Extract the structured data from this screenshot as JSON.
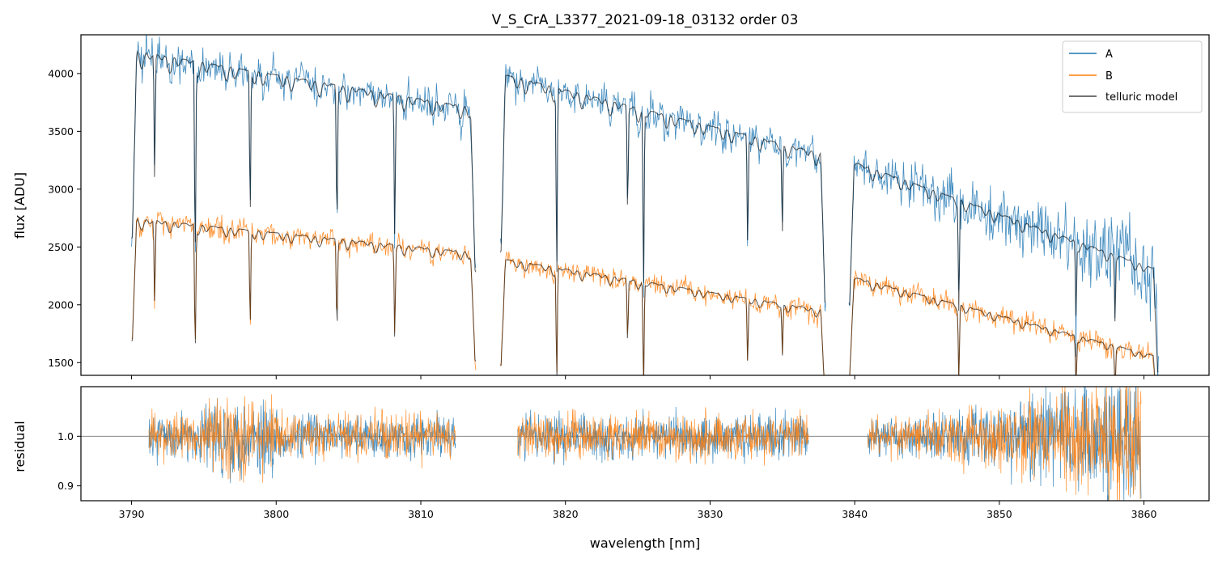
{
  "chart_data": [
    {
      "panel": "main",
      "type": "line",
      "title": "V_S_CrA_L3377_2021-09-18_03132  order 03",
      "xlabel": "",
      "ylabel": "flux [ADU]",
      "xlim": [
        3786.5,
        3864.5
      ],
      "ylim": [
        1390,
        4335
      ],
      "xticks": [
        3790,
        3800,
        3810,
        3820,
        3830,
        3840,
        3850,
        3860
      ],
      "yticks": [
        1500,
        2000,
        2500,
        3000,
        3500,
        4000
      ],
      "ytick_labels": [
        "1500",
        "2000",
        "2500",
        "3000",
        "3500",
        "4000"
      ],
      "legend": {
        "position": "top-right",
        "entries": [
          "A",
          "B",
          "telluric model"
        ]
      },
      "segments": [
        {
          "x_range": [
            3790.0,
            3813.8
          ],
          "A_continuum": [
            4200,
            3700
          ],
          "B_continuum": [
            2750,
            2450
          ]
        },
        {
          "x_range": [
            3815.5,
            3838.0
          ],
          "A_continuum": [
            4000,
            3300
          ],
          "B_continuum": [
            2400,
            1950
          ]
        },
        {
          "x_range": [
            3839.6,
            3861.0
          ],
          "A_continuum": [
            3250,
            2300
          ],
          "B_continuum": [
            2250,
            1550
          ]
        }
      ],
      "absorption_lines_nm": [
        3791.6,
        3794.4,
        3798.2,
        3804.2,
        3808.2,
        3819.4,
        3824.3,
        3825.4,
        3832.6,
        3835.0,
        3847.2,
        3855.3,
        3858.0
      ],
      "series": [
        {
          "name": "A",
          "color": "#1f77b4",
          "description": "observed spectrum nod A"
        },
        {
          "name": "B",
          "color": "#ff7f0e",
          "description": "observed spectrum nod B"
        },
        {
          "name": "telluric model",
          "color": "#000000",
          "description": "telluric model fit"
        }
      ]
    },
    {
      "panel": "residual",
      "type": "line",
      "xlabel": "wavelength [nm]",
      "ylabel": "residual",
      "xlim": [
        3786.5,
        3864.5
      ],
      "ylim": [
        0.87,
        1.1
      ],
      "xticks": [
        3790,
        3800,
        3810,
        3820,
        3830,
        3840,
        3850,
        3860
      ],
      "xtick_labels": [
        "3790",
        "3800",
        "3810",
        "3820",
        "3830",
        "3840",
        "3850",
        "3860"
      ],
      "yticks": [
        0.9,
        1.0
      ],
      "ytick_labels": [
        "0.9",
        "1.0"
      ],
      "reference_line": 1.0,
      "segments": [
        {
          "x_range": [
            3791.2,
            3812.4
          ]
        },
        {
          "x_range": [
            3816.7,
            3836.8
          ]
        },
        {
          "x_range": [
            3840.9,
            3859.8
          ]
        }
      ],
      "series": [
        {
          "name": "A",
          "color": "#1f77b4"
        },
        {
          "name": "B",
          "color": "#ff7f0e"
        }
      ]
    }
  ]
}
